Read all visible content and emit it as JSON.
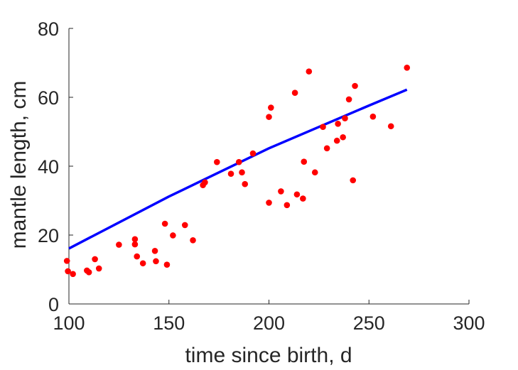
{
  "chart_data": {
    "type": "scatter",
    "xlabel": "time since birth, d",
    "ylabel": "mantle length, cm",
    "xlim": [
      100,
      300
    ],
    "ylim": [
      0,
      80
    ],
    "xticks": [
      100,
      150,
      200,
      250,
      300
    ],
    "yticks": [
      0,
      20,
      40,
      60,
      80
    ],
    "xtick_labels": [
      "100",
      "150",
      "200",
      "250",
      "300"
    ],
    "ytick_labels": [
      "0",
      "20",
      "40",
      "60",
      "80"
    ],
    "grid": false,
    "series": [
      {
        "kind": "points",
        "color": "#ff0000",
        "x": [
          99,
          99.5,
          102,
          109,
          110,
          113,
          115,
          125,
          133,
          133,
          134,
          137,
          143,
          143.5,
          148,
          149,
          152,
          158,
          162,
          167,
          168,
          174,
          181,
          185,
          186.5,
          188,
          192,
          200,
          200,
          201,
          206,
          209,
          213,
          214,
          217,
          217.5,
          220,
          223,
          227,
          229,
          234,
          234.5,
          237,
          238,
          240,
          242,
          243,
          252,
          261,
          269
        ],
        "y": [
          12.5,
          9.5,
          8.7,
          9.7,
          9.2,
          13.0,
          10.3,
          17.2,
          18.8,
          17.3,
          13.8,
          11.8,
          15.4,
          12.4,
          23.3,
          11.4,
          19.9,
          22.9,
          18.5,
          34.5,
          35.3,
          41.2,
          37.8,
          41.2,
          38.2,
          34.8,
          43.7,
          29.4,
          54.3,
          57.0,
          32.7,
          28.7,
          61.3,
          31.8,
          30.6,
          41.3,
          67.5,
          38.2,
          51.4,
          45.2,
          47.4,
          52.3,
          48.4,
          53.9,
          59.4,
          35.9,
          63.3,
          54.4,
          51.6,
          68.6
        ]
      },
      {
        "kind": "line",
        "color": "#0000ff",
        "x": [
          100,
          150,
          200,
          250,
          269
        ],
        "y": [
          16.1,
          31.2,
          45.2,
          57.6,
          62.2
        ]
      }
    ]
  }
}
